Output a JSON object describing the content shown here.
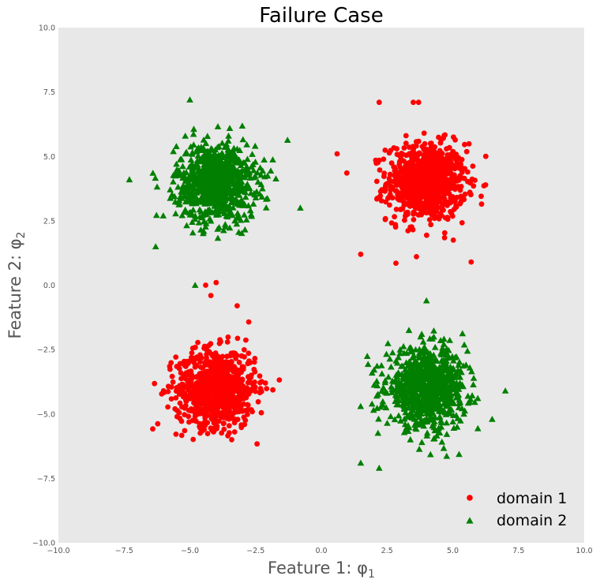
{
  "chart_data": {
    "type": "scatter",
    "title": "Failure Case",
    "xlabel": "Feature 1: φ",
    "xlabel_sub": "1",
    "ylabel": "Feature 2: φ",
    "ylabel_sub": "2",
    "xlim": [
      -10.0,
      10.0
    ],
    "ylim": [
      -10.0,
      10.0
    ],
    "xticks": [
      -10.0,
      -7.5,
      -5.0,
      -2.5,
      0.0,
      2.5,
      5.0,
      7.5,
      10.0
    ],
    "yticks": [
      -10.0,
      -7.5,
      -5.0,
      -2.5,
      0.0,
      2.5,
      5.0,
      7.5,
      10.0
    ],
    "xtick_labels": [
      "−10.0",
      "−7.5",
      "−5.0",
      "−2.5",
      "0.0",
      "2.5",
      "5.0",
      "7.5",
      "10.0"
    ],
    "ytick_labels": [
      "−10.0",
      "−7.5",
      "−5.0",
      "−2.5",
      "0.0",
      "2.5",
      "5.0",
      "7.5",
      "10.0"
    ],
    "grid": false,
    "background": "#e8e8e8",
    "legend_position": "lower-right",
    "series": [
      {
        "name": "domain 1",
        "marker": "circle",
        "color": "#ff0000",
        "clusters": [
          {
            "center": [
              4.0,
              4.0
            ],
            "std": 0.75,
            "count": 850
          },
          {
            "center": [
              -4.0,
              -4.0
            ],
            "std": 0.75,
            "count": 850
          }
        ],
        "outliers": [
          [
            0.6,
            5.1
          ],
          [
            -4.4,
            0.0
          ],
          [
            -4.0,
            0.1
          ],
          [
            -4.2,
            -0.4
          ],
          [
            2.2,
            7.1
          ],
          [
            3.5,
            7.1
          ],
          [
            3.7,
            7.1
          ],
          [
            -3.2,
            -0.8
          ],
          [
            1.5,
            1.2
          ],
          [
            5.7,
            0.9
          ]
        ]
      },
      {
        "name": "domain 2",
        "marker": "triangle",
        "color": "#007f00",
        "clusters": [
          {
            "center": [
              -4.0,
              4.0
            ],
            "std": 0.75,
            "count": 850
          },
          {
            "center": [
              4.0,
              -4.0
            ],
            "std": 0.75,
            "count": 850
          }
        ],
        "outliers": [
          [
            -7.3,
            4.1
          ],
          [
            -5.0,
            7.2
          ],
          [
            -4.8,
            0.0
          ],
          [
            4.0,
            -0.6
          ],
          [
            1.5,
            -6.9
          ],
          [
            2.2,
            -7.1
          ],
          [
            -0.8,
            3.0
          ],
          [
            7.0,
            -4.1
          ],
          [
            -6.3,
            1.5
          ],
          [
            6.5,
            -5.2
          ]
        ]
      }
    ]
  }
}
